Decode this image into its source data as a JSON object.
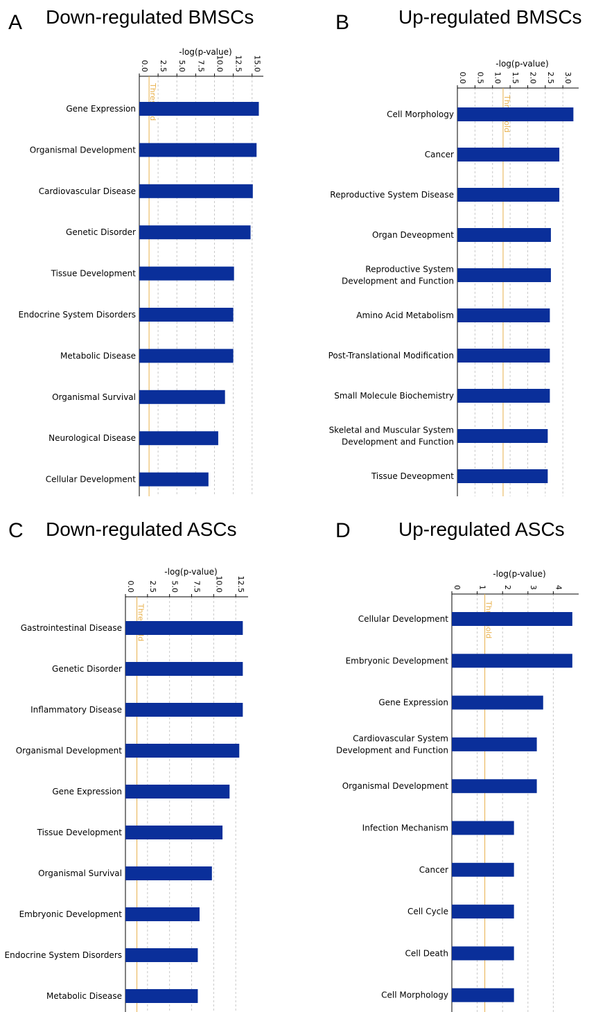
{
  "chart_data": [
    {
      "type": "bar",
      "orientation": "horizontal",
      "panel": "A",
      "title": "Down-regulated BMSCs",
      "xlabel": "-log(p-value)",
      "ticks": [
        "0.0",
        "2.5",
        "5.0",
        "7.5",
        "10.0",
        "12.5",
        "15.0"
      ],
      "xlim": [
        0,
        16.5
      ],
      "threshold": 1.3,
      "threshold_label": "Threshold",
      "categories": [
        "Gene Expression",
        "Organismal Development",
        "Cardiovascular Disease",
        "Genetic Disorder",
        "Tissue Development",
        "Endocrine System Disorders",
        "Metabolic Disease",
        "Organismal Survival",
        "Neurological Disease",
        "Cellular Development"
      ],
      "values": [
        15.9,
        15.6,
        15.1,
        14.8,
        12.6,
        12.5,
        12.5,
        11.4,
        10.5,
        9.2
      ]
    },
    {
      "type": "bar",
      "orientation": "horizontal",
      "panel": "B",
      "title": "Up-regulated BMSCs",
      "xlabel": "-log(p-value)",
      "ticks": [
        "0.0",
        "0.5",
        "1.0",
        "1.5",
        "2.0",
        "2.5",
        "3.0"
      ],
      "xlim": [
        0,
        3.45
      ],
      "threshold": 1.3,
      "threshold_label": "Threshold",
      "categories": [
        "Cell Morphology",
        "Cancer",
        "Reproductive System Disease",
        "Organ Deveopment",
        "Reproductive System\nDevelopment and Function",
        "Amino Acid Metabolism",
        "Post-Translational Modification",
        "Small Molecule Biochemistry",
        "Skeletal and Muscular System\nDevelopment and Function",
        "Tissue Deveopment"
      ],
      "values": [
        3.3,
        2.9,
        2.9,
        2.66,
        2.66,
        2.63,
        2.63,
        2.63,
        2.57,
        2.57
      ]
    },
    {
      "type": "bar",
      "orientation": "horizontal",
      "panel": "C",
      "title": "Down-regulated ASCs",
      "xlabel": "-log(p-value)",
      "ticks": [
        "0.0",
        "2.5",
        "5.0",
        "7.5",
        "10.0",
        "12.5"
      ],
      "xlim": [
        0,
        13.9
      ],
      "threshold": 1.3,
      "threshold_label": "Threshold",
      "categories": [
        "Gastrointestinal Disease",
        "Genetic Disorder",
        "Inflammatory Disease",
        "Organismal Development",
        "Gene Expression",
        "Tissue Development",
        "Organismal Survival",
        "Embryonic Development",
        "Endocrine System Disorders",
        "Metabolic Disease"
      ],
      "values": [
        13.3,
        13.3,
        13.3,
        12.9,
        11.8,
        11.0,
        9.8,
        8.4,
        8.2,
        8.2
      ]
    },
    {
      "type": "bar",
      "orientation": "horizontal",
      "panel": "D",
      "title": "Up-regulated ASCs",
      "xlabel": "-log(p-value)",
      "ticks": [
        "0",
        "1",
        "2",
        "3",
        "4"
      ],
      "xlim": [
        0,
        5.0
      ],
      "threshold": 1.3,
      "threshold_label": "Threshold",
      "categories": [
        "Cellular Development",
        "Embryonic Development",
        "Gene Expression",
        "Cardiovascular System\nDevelopment and Function",
        "Organismal Development",
        "Infection Mechanism",
        "Cancer",
        "Cell Cycle",
        "Cell Death",
        "Cell Morphology"
      ],
      "values": [
        4.75,
        4.75,
        3.6,
        3.35,
        3.35,
        2.45,
        2.45,
        2.45,
        2.45,
        2.45
      ]
    }
  ]
}
